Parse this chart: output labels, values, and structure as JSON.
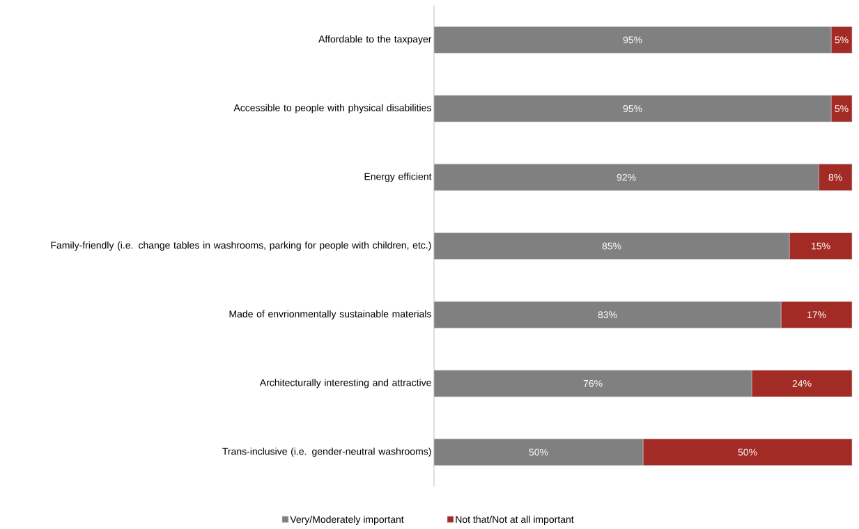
{
  "chart_data": {
    "type": "bar",
    "orientation": "horizontal",
    "stacked": true,
    "legend": "bottom",
    "tick_labels": "y",
    "xlim": [
      0,
      100
    ],
    "categories": [
      "Affordable to the taxpayer",
      "Accessible to people with physical disabilities",
      "Energy efficient",
      "Family-friendly (i.e. change tables in washrooms, parking for people with children, etc.)",
      "Made of envrionmentally sustainable materials",
      "Architecturally interesting and attractive",
      "Trans-inclusive (i.e. gender-neutral washrooms)"
    ],
    "series": [
      {
        "name": "Very/Moderately important",
        "color": "#808080",
        "values": [
          95,
          95,
          92,
          85,
          83,
          76,
          50
        ],
        "value_labels": [
          "95%",
          "95%",
          "92%",
          "85%",
          "83%",
          "76%",
          "50%"
        ]
      },
      {
        "name": "Not that/Not at all important",
        "color": "#a32b25",
        "values": [
          5,
          5,
          8,
          15,
          17,
          24,
          50
        ],
        "value_labels": [
          "5%",
          "5%",
          "8%",
          "15%",
          "17%",
          "24%",
          "50%"
        ]
      }
    ]
  }
}
